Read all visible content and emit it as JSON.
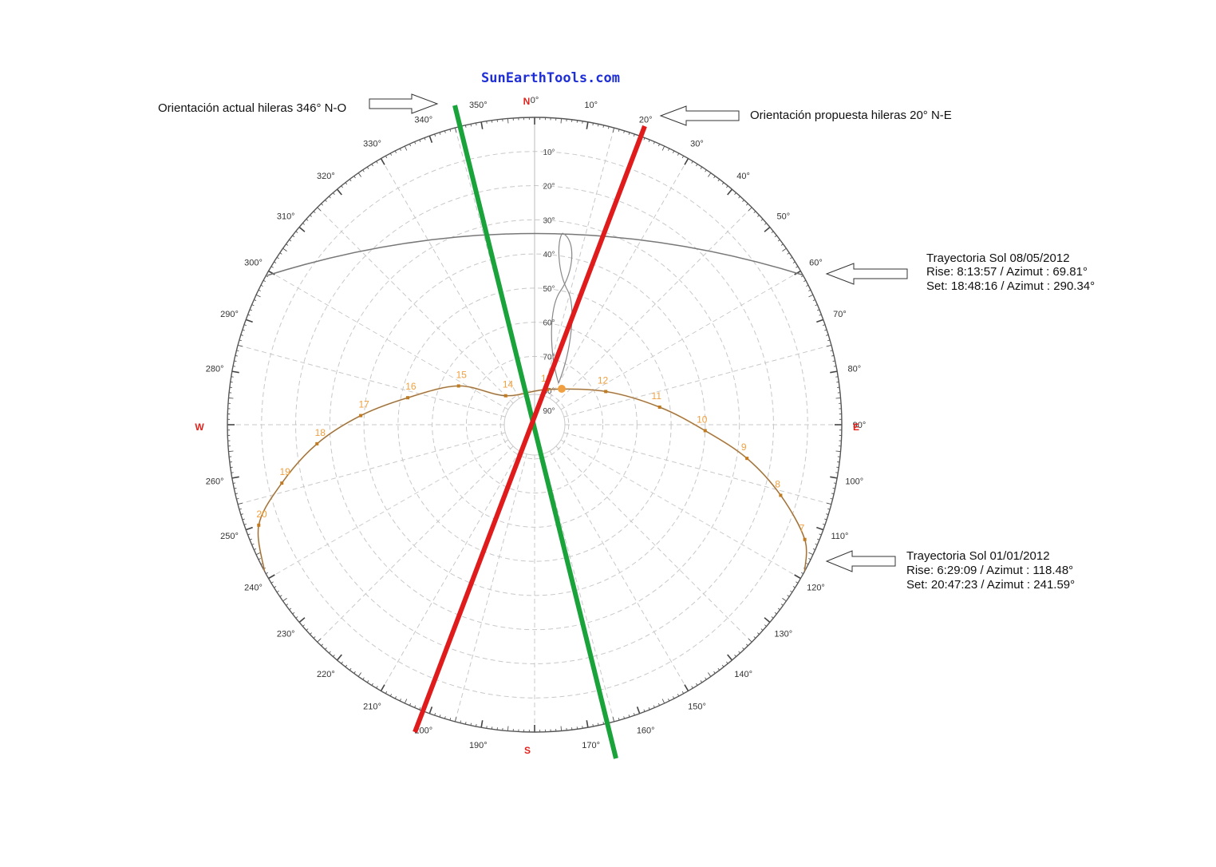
{
  "brand": "SunEarthTools.com",
  "cardinals": {
    "north": "N",
    "south": "S",
    "east": "E",
    "west": "W"
  },
  "azimuth_labels": [
    "0°",
    "10°",
    "20°",
    "30°",
    "40°",
    "50°",
    "60°",
    "70°",
    "80°",
    "90°",
    "100°",
    "110°",
    "120°",
    "130°",
    "140°",
    "150°",
    "160°",
    "170°",
    "180°",
    "190°",
    "200°",
    "210°",
    "220°",
    "230°",
    "240°",
    "250°",
    "260°",
    "270°",
    "280°",
    "290°",
    "300°",
    "310°",
    "320°",
    "330°",
    "340°",
    "350°"
  ],
  "elevation_labels": [
    "10°",
    "20°",
    "30°",
    "40°",
    "50°",
    "60°",
    "70°",
    "80°",
    "90°"
  ],
  "annotations": {
    "current_orientation": "Orientación actual hileras 346° N-O",
    "proposed_orientation": "Orientación propuesta hileras 20° N-E",
    "path_may": {
      "title": "Trayectoria Sol 08/05/2012",
      "rise": "Rise: 8:13:57 / Azimut : 69.81°",
      "set": "Set: 18:48:16 / Azimut : 290.34°"
    },
    "path_jan": {
      "title": "Trayectoria Sol 01/01/2012",
      "rise": "Rise: 6:29:09 / Azimut  : 118.48°",
      "set": "Set: 20:47:23 / Azimut  : 241.59°"
    }
  },
  "chart_data": {
    "type": "polar sun path",
    "azimuth_range": [
      0,
      360
    ],
    "elevation_range": [
      0,
      90
    ],
    "orientation_lines": [
      {
        "azimuth": 346,
        "color": "#1aa33b"
      },
      {
        "azimuth": 20,
        "color": "#e01b1b"
      }
    ],
    "sun_paths": [
      {
        "date": "08/05/2012",
        "rise_azimuth": 69.81,
        "set_azimuth": 290.34,
        "color": "#777777"
      },
      {
        "date": "01/01/2012",
        "rise_azimuth": 118.48,
        "set_azimuth": 241.59,
        "color": "#f0a040",
        "hours": [
          {
            "label": "7",
            "azimuth": 113,
            "elevation": 4
          },
          {
            "label": "8",
            "azimuth": 106,
            "elevation": 15
          },
          {
            "label": "9",
            "azimuth": 99,
            "elevation": 27
          },
          {
            "label": "10",
            "azimuth": 92,
            "elevation": 40
          },
          {
            "label": "11",
            "azimuth": 82,
            "elevation": 53
          },
          {
            "label": "12",
            "azimuth": 65,
            "elevation": 67
          },
          {
            "label": "13",
            "azimuth": 20,
            "elevation": 79
          },
          {
            "label": "14",
            "azimuth": 315,
            "elevation": 78
          },
          {
            "label": "15",
            "azimuth": 297,
            "elevation": 65
          },
          {
            "label": "16",
            "azimuth": 282,
            "elevation": 52
          },
          {
            "label": "17",
            "azimuth": 273,
            "elevation": 39
          },
          {
            "label": "18",
            "azimuth": 265,
            "elevation": 26
          },
          {
            "label": "19",
            "azimuth": 257,
            "elevation": 14
          },
          {
            "label": "20",
            "azimuth": 250,
            "elevation": 4
          }
        ]
      }
    ]
  }
}
